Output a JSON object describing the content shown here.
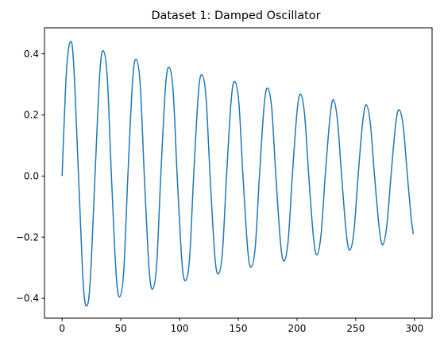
{
  "chart_data": {
    "type": "line",
    "title": "Dataset 1: Damped Oscillator",
    "xlabel": "",
    "ylabel": "",
    "xlim": [
      -15,
      315
    ],
    "ylim": [
      -0.465,
      0.485
    ],
    "xticks": [
      0,
      50,
      100,
      150,
      200,
      250,
      300
    ],
    "yticks": [
      -0.4,
      -0.2,
      0.0,
      0.2,
      0.4
    ],
    "xtick_labels": [
      "0",
      "50",
      "100",
      "150",
      "200",
      "250",
      "300"
    ],
    "ytick_labels": [
      "−0.4",
      "−0.2",
      "0.0",
      "0.2",
      "0.4"
    ],
    "grid": false,
    "legend": "none",
    "line_color": "#1f77b4",
    "series": [
      {
        "x": [
          0,
          2,
          4,
          7,
          9.8,
          14,
          18,
          21,
          24,
          28,
          32,
          35,
          38.5,
          42,
          46,
          49,
          52.5,
          56,
          60,
          63,
          66.5,
          70,
          74,
          77,
          80.5,
          84,
          88,
          91,
          94.5,
          98,
          102,
          105,
          108.5,
          112,
          116,
          119,
          122.5,
          126,
          130,
          133,
          136.5,
          140,
          144,
          147,
          150.5,
          154,
          158,
          161,
          164.5,
          168,
          172,
          175,
          178.5,
          182,
          186,
          189,
          192.5,
          196,
          200,
          203,
          206.5,
          210,
          214,
          217,
          220.5,
          224,
          228,
          231,
          234.5,
          238,
          242,
          245,
          248.5,
          252,
          256,
          259,
          262.5,
          266,
          270,
          273,
          276.5,
          280,
          284,
          287,
          290.5,
          294,
          297,
          299
        ],
        "y": [
          0.0,
          0.2,
          0.36,
          0.44,
          0.37,
          0.0,
          -0.35,
          -0.425,
          -0.34,
          0.0,
          0.33,
          0.41,
          0.32,
          0.0,
          -0.32,
          -0.395,
          -0.31,
          0.0,
          0.31,
          0.382,
          0.3,
          0.0,
          -0.3,
          -0.37,
          -0.29,
          0.0,
          0.29,
          0.356,
          0.28,
          0.0,
          -0.28,
          -0.342,
          -0.27,
          0.0,
          0.27,
          0.332,
          0.26,
          0.0,
          -0.26,
          -0.32,
          -0.25,
          0.0,
          0.25,
          0.309,
          0.24,
          0.0,
          -0.24,
          -0.298,
          -0.23,
          0.0,
          0.23,
          0.288,
          0.22,
          0.0,
          -0.22,
          -0.278,
          -0.21,
          0.0,
          0.21,
          0.268,
          0.2,
          0.0,
          -0.2,
          -0.258,
          -0.19,
          0.0,
          0.19,
          0.25,
          0.18,
          0.0,
          -0.19,
          -0.242,
          -0.18,
          0.0,
          0.18,
          0.233,
          0.17,
          0.0,
          -0.17,
          -0.225,
          -0.16,
          0.0,
          0.17,
          0.217,
          0.16,
          0.0,
          -0.13,
          -0.19
        ]
      }
    ]
  }
}
